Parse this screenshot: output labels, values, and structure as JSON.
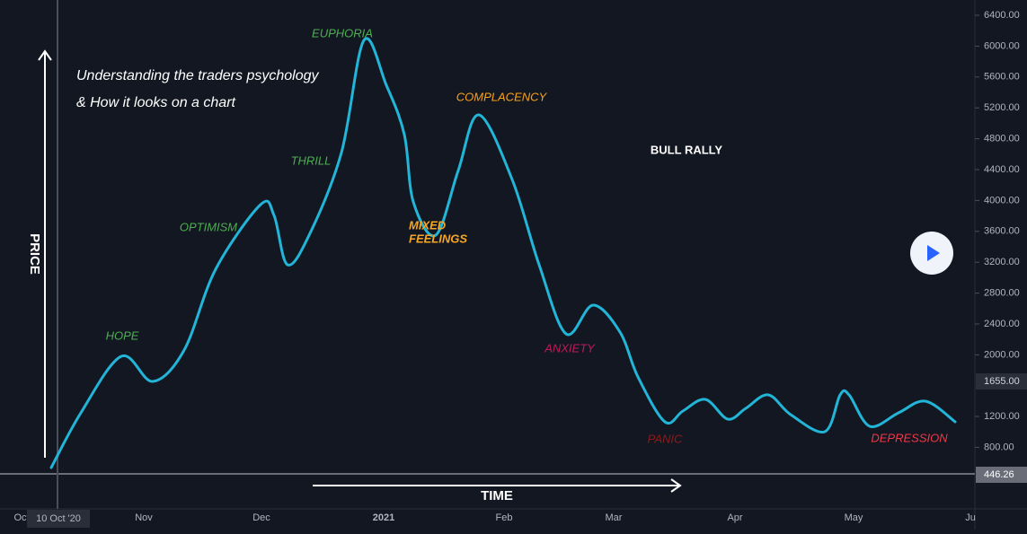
{
  "heading": {
    "lines": [
      "Understanding the traders psychology",
      "& How it looks on a chart"
    ]
  },
  "axis_titles": {
    "price": "PRICE",
    "time": "TIME"
  },
  "phases": [
    {
      "label": "HOPE",
      "color": "#4caf50"
    },
    {
      "label": "OPTIMISM",
      "color": "#4caf50"
    },
    {
      "label": "THRILL",
      "color": "#4caf50"
    },
    {
      "label": "EUPHORIA",
      "color": "#4caf50"
    },
    {
      "label": "MIXED",
      "color": "#f5a623"
    },
    {
      "label": "FEELINGS",
      "color": "#f5a623"
    },
    {
      "label": "COMPLACENCY",
      "color": "#f7a21b"
    },
    {
      "label": "BULL RALLY",
      "color": "#ffffff"
    },
    {
      "label": "ANXIETY",
      "color": "#c2185b"
    },
    {
      "label": "PANIC",
      "color": "#8b1a1a"
    },
    {
      "label": "DEPRESSION",
      "color": "#f23645"
    }
  ],
  "price_axis": {
    "labels": [
      "6400.00",
      "6000.00",
      "5600.00",
      "5200.00",
      "4800.00",
      "4400.00",
      "4000.00",
      "3600.00",
      "3200.00",
      "2800.00",
      "2400.00",
      "2000.00",
      "1200.00",
      "800.00"
    ],
    "markers": [
      "1655.00",
      "446.26"
    ]
  },
  "time_axis": {
    "labels": [
      "Oct",
      "Nov",
      "Dec",
      "2021",
      "Feb",
      "Mar",
      "Apr",
      "May",
      "Ju"
    ],
    "cursor": "10 Oct '20"
  }
}
